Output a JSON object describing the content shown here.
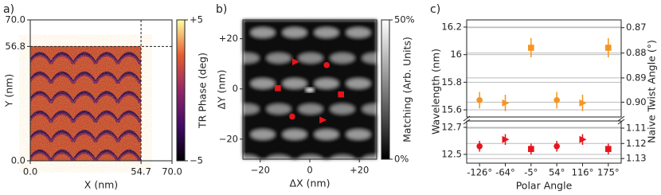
{
  "chart_data": [
    {
      "type": "heatmap",
      "panel_label": "a)",
      "xlabel": "X (nm)",
      "ylabel": "Y (nm)",
      "xlim": [
        0,
        70
      ],
      "xticks": [
        {
          "value": 0,
          "label": "0.0"
        },
        54.7,
        {
          "value": 70,
          "label": "70.0"
        }
      ],
      "ylim": [
        0,
        70
      ],
      "yticks": [
        {
          "value": 0,
          "label": "0.0"
        },
        56.8,
        {
          "value": 70,
          "label": "70.0"
        }
      ],
      "colorbar_label": "TR Phase (deg)",
      "clim": [
        -5,
        5
      ],
      "cticks": [
        {
          "value": 5,
          "label": "+5"
        },
        {
          "value": -5,
          "label": "−5"
        }
      ],
      "colormap": "inferno"
    },
    {
      "type": "heatmap",
      "panel_label": "b)",
      "xlabel": "ΔX (nm)",
      "ylabel": "ΔY (nm)",
      "xlim": [
        -27,
        27
      ],
      "xticks": [
        {
          "value": -20,
          "label": "−20"
        },
        0,
        {
          "value": 20,
          "label": "+20"
        }
      ],
      "ylim": [
        -28,
        27.5
      ],
      "yticks": [
        {
          "value": -20,
          "label": "−20"
        },
        0,
        {
          "value": 20,
          "label": "+20"
        }
      ],
      "colorbar_label": "Matching (Arb. Units)",
      "clim": [
        0,
        50
      ],
      "cticks": [
        {
          "value": 50,
          "label": "50%"
        },
        {
          "value": 0,
          "label": "0%"
        }
      ],
      "colormap": "gray",
      "points": {
        "color": "#e8141c",
        "markers": [
          "triangle",
          "circle",
          "square",
          "square",
          "circle",
          "triangle"
        ],
        "x": [
          -5.8,
          6.8,
          -12.9,
          12.6,
          -7.1,
          5.2
        ],
        "values": [
          10.8,
          9.5,
          0.3,
          -2.2,
          -11,
          -12.4
        ]
      }
    },
    {
      "type": "errorbar",
      "panel_label": "c)",
      "xlabel": "Polar Angle",
      "ylabel": "Wavelength (nm)",
      "y2label": "Naive Twist Angle (°)",
      "categories": [
        "-126°",
        "-64°",
        "-5°",
        "54°",
        "116°",
        "175°"
      ],
      "markers": [
        "circle",
        "triangle",
        "square",
        "circle",
        "triangle",
        "square"
      ],
      "grid": true,
      "y2scale": "reciprocal",
      "panels": [
        {
          "ylim": [
            15.548,
            16.252
          ],
          "yticks": [
            15.6,
            15.8,
            16.0,
            16.2
          ],
          "y2lim": [
            0.9062,
            0.867
          ],
          "y2ticks": [
            0.87,
            0.88,
            0.89,
            {
              "value": 0.9,
              "label": "0.90"
            }
          ],
          "series": [
            {
              "color": "#f5951f",
              "values": [
                15.67,
                15.65,
                16.05,
                15.67,
                15.65,
                16.05
              ],
              "errors": [
                0.06,
                0.06,
                0.07,
                0.06,
                0.06,
                0.07
              ]
            }
          ]
        },
        {
          "ylim": [
            12.435,
            12.747
          ],
          "yticks": [
            12.5,
            12.7
          ],
          "y2lim": [
            1.1331,
            1.1054
          ],
          "y2ticks": [
            1.11,
            1.12,
            1.13
          ],
          "series": [
            {
              "color": "#e8141c",
              "values": [
                12.56,
                12.61,
                12.54,
                12.56,
                12.61,
                12.54
              ],
              "errors": [
                0.04,
                0.04,
                0.04,
                0.04,
                0.04,
                0.04
              ]
            }
          ]
        }
      ]
    }
  ]
}
